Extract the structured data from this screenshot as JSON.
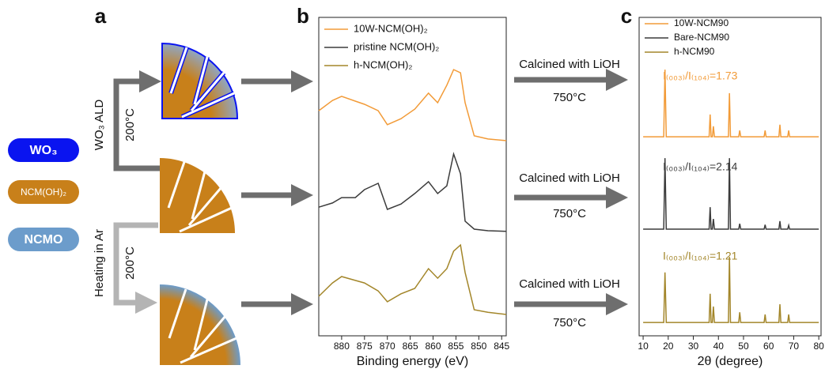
{
  "panel_labels": [
    "a",
    "b",
    "c"
  ],
  "schematic": {
    "legend": [
      "WO₃",
      "NCM(OH)₂",
      "NCMO"
    ],
    "process_top": "WO₃  ALD",
    "temp_top": "200°C",
    "process_bottom": "Heating in Ar",
    "temp_bottom": "200°C",
    "calcination": [
      {
        "label": "Calcined with LiOH",
        "temp": "750°C"
      },
      {
        "label": "Calcined with LiOH",
        "temp": "750°C"
      },
      {
        "label": "Calcined with LiOH",
        "temp": "750°C"
      }
    ]
  },
  "chart_data": [
    {
      "type": "line",
      "xlabel": "Binding energy (eV)",
      "xlim": [
        885,
        844
      ],
      "xticks": [
        880,
        875,
        870,
        865,
        860,
        855,
        850,
        845
      ],
      "ylim": [
        0,
        100
      ],
      "legend": "upper left",
      "x": [
        885,
        882,
        880,
        877,
        875,
        872,
        870,
        867,
        864,
        861,
        859,
        857,
        855.5,
        854,
        853,
        851,
        848,
        844
      ],
      "series": [
        {
          "name": "10W-NCM(OH)₂",
          "color": "#f29b38",
          "values": [
            70.7,
            73.9,
            75.2,
            73.7,
            72.7,
            70.7,
            66.3,
            68.2,
            71.2,
            76.2,
            73.2,
            78.7,
            83.6,
            82.6,
            73.2,
            62.8,
            61.8,
            61.3
          ]
        },
        {
          "name": "pristine NCM(OH)₂",
          "color": "#3c3c3c",
          "values": [
            40.4,
            41.7,
            43.4,
            43.4,
            45.9,
            47.9,
            39.7,
            41.4,
            44.7,
            48.4,
            44.7,
            47.1,
            57.1,
            50.9,
            36.0,
            33.5,
            33.0,
            32.8
          ]
        },
        {
          "name": "h-NCM(OH)₂",
          "color": "#a3862a",
          "values": [
            12.4,
            16.6,
            18.6,
            17.4,
            16.6,
            14.1,
            10.7,
            13.2,
            14.9,
            21.1,
            18.1,
            21.1,
            26.6,
            28.5,
            19.9,
            8.2,
            7.4,
            6.7
          ]
        }
      ]
    },
    {
      "type": "line",
      "xlabel": "2θ (degree)",
      "xlim": [
        8.4,
        80.9
      ],
      "xticks": [
        10,
        20,
        30,
        40,
        50,
        60,
        70,
        80
      ],
      "ylim": [
        0,
        100
      ],
      "legend": "upper left",
      "x": [
        10,
        18.2,
        18.7,
        19.2,
        36.3,
        36.7,
        37.1,
        37.6,
        38,
        38.4,
        44,
        44.4,
        44.8,
        48.1,
        48.5,
        48.9,
        58.2,
        58.6,
        59,
        64.1,
        64.5,
        64.9,
        67.6,
        68,
        68.4,
        80
      ],
      "series": [
        {
          "name": "10W-NCM90",
          "color": "#f29b38",
          "values": [
            62.5,
            62.5,
            83.6,
            62.5,
            62.5,
            69.5,
            62.5,
            62.5,
            65.8,
            62.5,
            62.5,
            76.2,
            62.5,
            62.5,
            64.5,
            62.5,
            62.5,
            64.5,
            62.5,
            62.5,
            66.3,
            62.5,
            62.5,
            64.5,
            62.5,
            62.5
          ]
        },
        {
          "name": "Bare-NCM90",
          "color": "#3c3c3c",
          "values": [
            33.5,
            33.5,
            55.8,
            33.5,
            33.5,
            40.4,
            33.5,
            33.5,
            36.7,
            33.5,
            33.5,
            55.8,
            33.5,
            33.5,
            35.2,
            33.5,
            33.5,
            34.9,
            33.5,
            33.5,
            36.0,
            33.5,
            33.5,
            34.7,
            33.5,
            33.5
          ]
        },
        {
          "name": "h-NCM90",
          "color": "#a3862a",
          "values": [
            4.2,
            4.2,
            19.9,
            4.2,
            4.2,
            13.2,
            4.2,
            4.2,
            9.2,
            4.2,
            4.2,
            24.8,
            4.2,
            4.2,
            7.4,
            4.2,
            4.2,
            6.7,
            4.2,
            4.2,
            9.9,
            4.2,
            4.2,
            6.7,
            4.2,
            4.2
          ]
        }
      ],
      "annotations": [
        {
          "text": "I₍₀₀₃₎/I₍₁₀₄₎=1.73",
          "color": "#f29b38"
        },
        {
          "text": "I₍₀₀₃₎/I₍₁₀₄₎=2.14",
          "color": "#3c3c3c"
        },
        {
          "text": "I₍₀₀₃₎/I₍₁₀₄₎=1.21",
          "color": "#a3862a"
        }
      ]
    }
  ]
}
